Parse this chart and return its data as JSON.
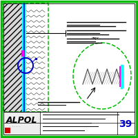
{
  "bg_color": "#ffffff",
  "outer_border_color": "#00bb00",
  "black_color": "#000000",
  "cyan_color": "#00ffff",
  "blue_color": "#0000cc",
  "magenta_color": "#ff00ff",
  "gray_color": "#888888",
  "light_gray": "#cccccc"
}
